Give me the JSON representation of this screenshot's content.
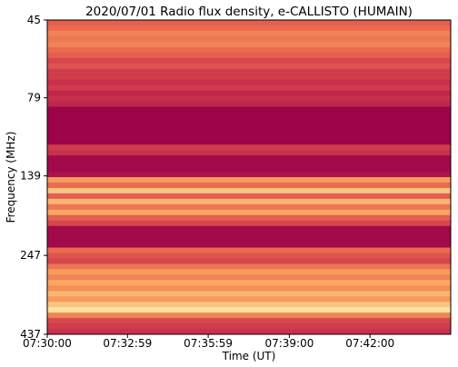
{
  "chart_data": {
    "type": "heatmap",
    "title": "2020/07/01  Radio flux density, e-CALLISTO (HUMAIN)",
    "xlabel": "Time (UT)",
    "ylabel": "Frequency (MHz)",
    "xlim": [
      "07:30:00",
      "07:45:00"
    ],
    "xticks": [
      "07:30:00",
      "07:32:59",
      "07:35:59",
      "07:39:00",
      "07:42:00"
    ],
    "ylim": [
      45,
      437
    ],
    "yticks": [
      45,
      79,
      139,
      247,
      437
    ],
    "ylog": true,
    "yinverted": true,
    "colormap": [
      "#99004a",
      "#c8304d",
      "#ec6a4f",
      "#f8a862",
      "#fdf0b0"
    ],
    "values": [
      0.45,
      0.5,
      0.6,
      0.55,
      0.6,
      0.5,
      0.45,
      0.35,
      0.4,
      0.3,
      0.3,
      0.25,
      0.3,
      0.2,
      0.25,
      0.2,
      0.02,
      0.02,
      0.02,
      0.02,
      0.02,
      0.02,
      0.02,
      0.3,
      0.25,
      0.05,
      0.05,
      0.05,
      0.1,
      0.7,
      0.5,
      0.85,
      0.45,
      0.8,
      0.55,
      0.75,
      0.45,
      0.35,
      0.05,
      0.05,
      0.05,
      0.05,
      0.5,
      0.4,
      0.35,
      0.55,
      0.7,
      0.6,
      0.75,
      0.65,
      0.8,
      0.7,
      0.85,
      0.95,
      0.6,
      0.35,
      0.3,
      0.25
    ]
  }
}
